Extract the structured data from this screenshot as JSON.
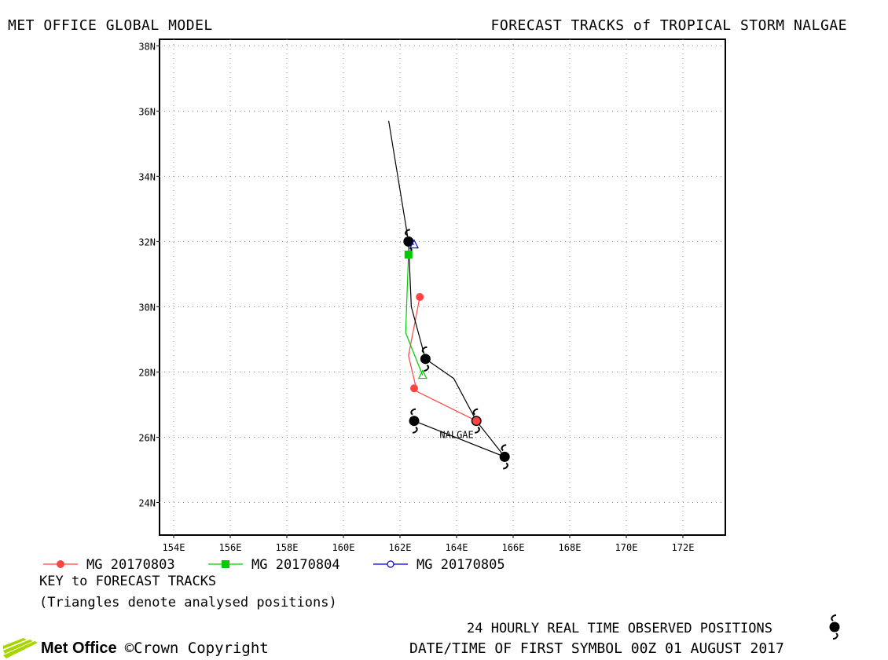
{
  "header": {
    "model": "MET OFFICE GLOBAL MODEL",
    "title": "FORECAST TRACKS of TROPICAL STORM NALGAE"
  },
  "chart_data": {
    "type": "map-track",
    "lon_range": [
      153.5,
      173.5
    ],
    "lat_range": [
      23,
      38.2
    ],
    "lon_ticks": [
      154,
      156,
      158,
      160,
      162,
      164,
      166,
      168,
      170,
      172
    ],
    "lat_ticks": [
      24,
      26,
      28,
      30,
      32,
      34,
      36,
      38
    ],
    "lon_tick_labels": [
      "154E",
      "156E",
      "158E",
      "160E",
      "162E",
      "164E",
      "166E",
      "168E",
      "170E",
      "172E"
    ],
    "lat_tick_labels": [
      "24N",
      "26N",
      "28N",
      "30N",
      "32N",
      "34N",
      "36N",
      "38N"
    ],
    "grid": true,
    "observed_track": {
      "color": "#000000",
      "points": [
        [
          162.5,
          26.5
        ],
        [
          165.7,
          25.4
        ],
        [
          164.7,
          26.5
        ],
        [
          163.9,
          27.8
        ],
        [
          162.9,
          28.4
        ],
        [
          162.4,
          30.0
        ],
        [
          162.3,
          32.0
        ],
        [
          161.6,
          35.7
        ]
      ],
      "storm_symbols": [
        [
          162.5,
          26.5
        ],
        [
          165.7,
          25.4
        ],
        [
          164.7,
          26.5
        ],
        [
          162.9,
          28.4
        ],
        [
          162.3,
          32.0
        ]
      ]
    },
    "storm_label": {
      "text": "NALGAE",
      "lon": 163.4,
      "lat": 26.1
    },
    "series": [
      {
        "name": "MG 20170803",
        "color": "#ff4444",
        "marker": "circle-filled",
        "points": [
          [
            164.7,
            26.5
          ],
          [
            162.6,
            27.4
          ],
          [
            162.3,
            28.5
          ],
          [
            162.7,
            30.3
          ]
        ],
        "markers": [
          [
            164.7,
            26.5
          ],
          [
            162.5,
            27.5
          ],
          [
            162.7,
            30.3
          ]
        ]
      },
      {
        "name": "MG 20170804",
        "color": "#00cc00",
        "marker": "square-filled",
        "points": [
          [
            162.8,
            27.9
          ],
          [
            162.2,
            29.2
          ],
          [
            162.3,
            31.6
          ]
        ],
        "markers": [
          [
            162.3,
            31.6
          ]
        ],
        "triangles": [
          [
            162.8,
            27.9
          ]
        ]
      },
      {
        "name": "MG 20170805",
        "color": "#0000cc",
        "marker": "circle-open",
        "points": [
          [
            162.3,
            32.0
          ],
          [
            162.5,
            31.9
          ]
        ],
        "triangles": [
          [
            162.5,
            31.9
          ]
        ]
      }
    ]
  },
  "legend": {
    "items": [
      {
        "label": "MG 20170803",
        "color": "#ff4444",
        "marker": "circle"
      },
      {
        "label": "MG 20170804",
        "color": "#00cc00",
        "marker": "square"
      },
      {
        "label": "MG 20170805",
        "color": "#0000cc",
        "marker": "open-circle"
      }
    ],
    "key_title": "KEY to FORECAST TRACKS",
    "key_note": "(Triangles denote analysed positions)"
  },
  "footer": {
    "observed_positions": "24 HOURLY REAL TIME OBSERVED POSITIONS",
    "date_time": "DATE/TIME OF FIRST SYMBOL 00Z 01 AUGUST 2017",
    "logo_name": "Met Office",
    "copyright": "©Crown Copyright",
    "logo_color": "#a8d400"
  }
}
